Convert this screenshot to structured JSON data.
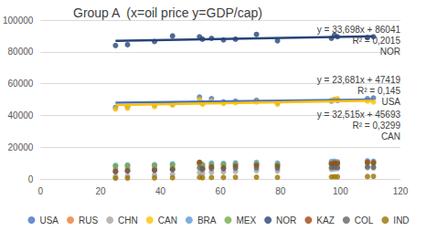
{
  "chart_data": {
    "type": "scatter",
    "title": "Group A  (x=oil price y=GDP/cap)",
    "x": [
      25,
      29,
      38,
      44,
      53,
      54,
      57,
      61,
      65,
      72,
      79,
      97,
      98,
      99,
      109,
      111
    ],
    "xlim": [
      0,
      120
    ],
    "xticks": [
      0,
      20,
      40,
      60,
      80,
      100,
      120
    ],
    "ylim": [
      0,
      100000
    ],
    "yticks": [
      0,
      20000,
      40000,
      60000,
      80000,
      100000
    ],
    "grid": true,
    "legend": "bottom",
    "marker": "circle",
    "series": [
      {
        "name": "USA",
        "color": "#4472c4",
        "values": [
          45000,
          45500,
          46500,
          47000,
          51500,
          48000,
          50500,
          48500,
          49000,
          49500,
          48000,
          49000,
          50000,
          49500,
          50500,
          51000
        ],
        "trend": {
          "x": [
            25,
            111
          ],
          "values": [
            48011,
            50048
          ],
          "equation": "y = 23,681x + 47419",
          "r2": "R² = 0,145",
          "label": "USA"
        }
      },
      {
        "name": "RUS",
        "color": "#ed7d31",
        "values": [
          6500,
          6800,
          7000,
          7500,
          9500,
          7200,
          8000,
          8500,
          9000,
          9200,
          8800,
          10000,
          10500,
          10200,
          11000,
          10800
        ]
      },
      {
        "name": "CHN",
        "color": "#a5a5a5",
        "values": [
          1500,
          1800,
          2500,
          3000,
          4000,
          3500,
          4200,
          4500,
          4800,
          5200,
          5000,
          6000,
          6200,
          6500,
          7000,
          6800
        ]
      },
      {
        "name": "CAN",
        "color": "#ffc000",
        "values": [
          44000,
          44500,
          45500,
          46500,
          50000,
          47000,
          49000,
          47500,
          48000,
          48500,
          47000,
          49500,
          50000,
          50500,
          49000,
          48500
        ],
        "trend": {
          "x": [
            25,
            111
          ],
          "values": [
            46506,
            49302
          ],
          "equation": "y = 32,515x + 45693",
          "r2": "R² = 0,3299",
          "label": "CAN"
        }
      },
      {
        "name": "BRA",
        "color": "#5b9bd5",
        "values": [
          8500,
          8800,
          9000,
          9500,
          10500,
          9200,
          10000,
          9800,
          10200,
          10500,
          10000,
          11000,
          11200,
          10800,
          11500,
          11200
        ]
      },
      {
        "name": "MEX",
        "color": "#70ad47",
        "values": [
          8200,
          8300,
          8500,
          8800,
          9500,
          8600,
          9000,
          9200,
          9300,
          9400,
          9000,
          9500,
          9600,
          9700,
          9800,
          9900
        ]
      },
      {
        "name": "NOR",
        "color": "#264478",
        "values": [
          84000,
          84500,
          86500,
          90000,
          89500,
          88000,
          88500,
          87500,
          88000,
          91000,
          87000,
          88500,
          90500,
          89500,
          89000,
          89500
        ],
        "trend": {
          "x": [
            25,
            111
          ],
          "values": [
            86883,
            89781
          ],
          "equation": "y = 33,698x + 86041",
          "r2": "R² = 0,2015",
          "label": "NOR"
        }
      },
      {
        "name": "KAZ",
        "color": "#9e480e",
        "values": [
          4500,
          5000,
          5500,
          6000,
          10500,
          6500,
          7500,
          7000,
          8000,
          8500,
          8000,
          9500,
          10000,
          9800,
          10500,
          10200
        ]
      },
      {
        "name": "COL",
        "color": "#636363",
        "values": [
          5000,
          5200,
          5500,
          6000,
          7000,
          6000,
          6500,
          6400,
          6800,
          7000,
          6700,
          7200,
          7400,
          7300,
          7600,
          7500
        ]
      },
      {
        "name": "IND",
        "color": "#997300",
        "values": [
          500,
          550,
          650,
          750,
          1000,
          800,
          900,
          950,
          1050,
          1100,
          1000,
          1300,
          1400,
          1350,
          1500,
          1600
        ]
      }
    ]
  }
}
